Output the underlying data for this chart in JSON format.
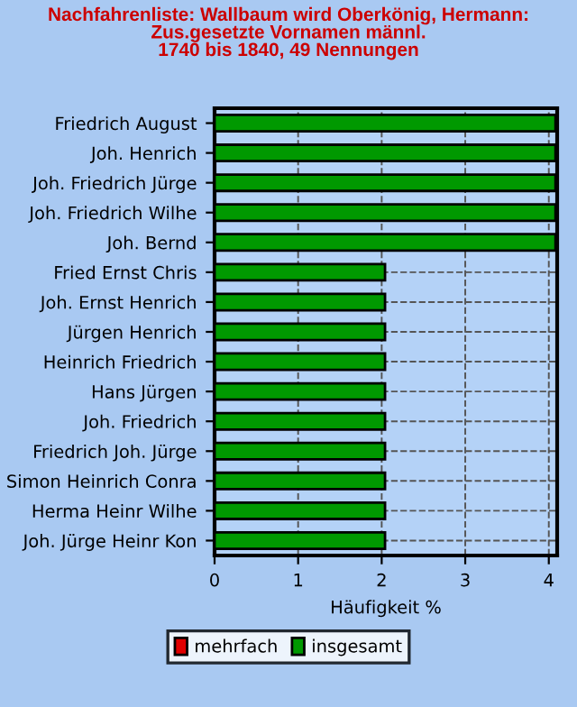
{
  "chart_data": {
    "type": "bar",
    "orientation": "horizontal",
    "stacked": true,
    "title": "Nachfahrenliste: Wallbaum wird Oberkönig, Hermann:\nZus.gesetzte Vornamen männl.\n1740 bis 1840, 49 Nennungen",
    "xlabel": "Häufigkeit %",
    "categories": [
      "Friedrich August",
      "Joh. Henrich",
      "Joh. Friedrich Jürge",
      "Joh. Friedrich Wilhe",
      "Joh. Bernd",
      "Fried Ernst Chris",
      "Joh. Ernst Henrich",
      "Jürgen Henrich",
      "Heinrich Friedrich",
      "Hans Jürgen",
      "Joh. Friedrich",
      "Friedrich Joh. Jürge",
      "Simon Heinrich Conra",
      "Herma Heinr Wilhe",
      "Joh. Jürge Heinr Kon"
    ],
    "series": [
      {
        "name": "mehrfach",
        "color": "#e00000",
        "values": [
          0,
          0,
          0,
          0,
          0,
          0,
          0,
          0,
          0,
          0,
          0,
          0,
          0,
          0,
          0
        ]
      },
      {
        "name": "insgesamt",
        "color": "#009900",
        "values": [
          4.08,
          4.08,
          4.08,
          4.08,
          4.08,
          2.04,
          2.04,
          2.04,
          2.04,
          2.04,
          2.04,
          2.04,
          2.04,
          2.04,
          2.04
        ]
      }
    ],
    "xlim": [
      0,
      4.1
    ],
    "xticks": [
      0,
      1,
      2,
      3,
      4
    ],
    "grid": true,
    "legend": "bottom"
  }
}
